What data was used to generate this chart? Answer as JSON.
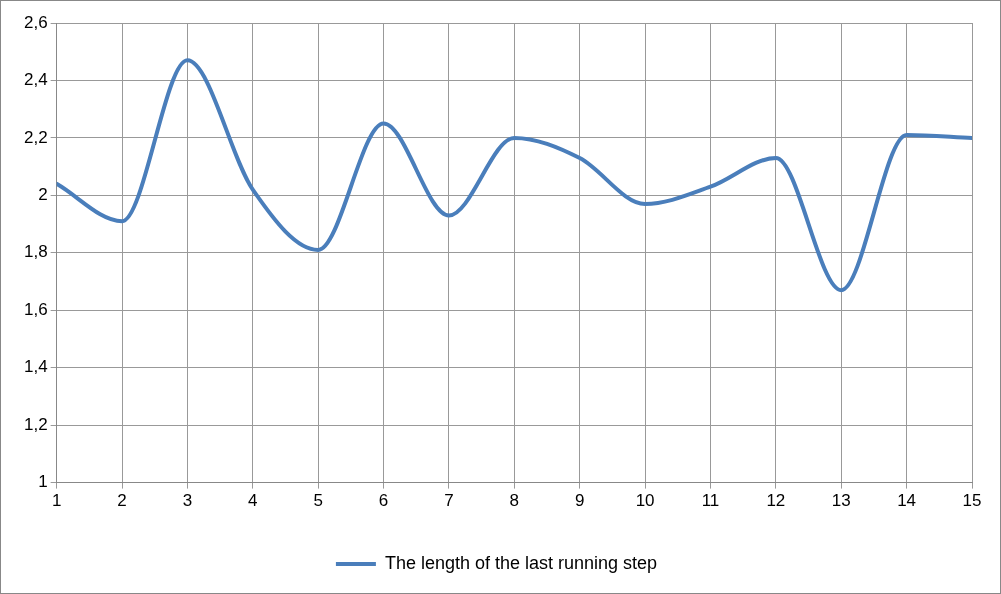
{
  "chart_data": {
    "type": "line",
    "x": [
      1,
      2,
      3,
      4,
      5,
      6,
      7,
      8,
      9,
      10,
      11,
      12,
      13,
      14,
      15
    ],
    "series": [
      {
        "name": "The length of the last running step",
        "color": "#4a7ebb",
        "values": [
          2.04,
          1.91,
          2.47,
          2.02,
          1.81,
          2.25,
          1.93,
          2.2,
          2.13,
          1.97,
          2.03,
          2.13,
          1.67,
          2.21,
          2.2
        ]
      }
    ],
    "xlim": [
      1,
      15
    ],
    "xticks": [
      1,
      2,
      3,
      4,
      5,
      6,
      7,
      8,
      9,
      10,
      11,
      12,
      13,
      14,
      15
    ],
    "ylim": [
      1,
      2.6
    ],
    "yticks": [
      1,
      {
        "value": 1.2,
        "label": "1,2"
      },
      {
        "value": 1.4,
        "label": "1,4"
      },
      {
        "value": 1.6,
        "label": "1,6"
      },
      {
        "value": 1.8,
        "label": "1,8"
      },
      2,
      {
        "value": 2.2,
        "label": "2,2"
      },
      {
        "value": 2.4,
        "label": "2,4"
      },
      {
        "value": 2.6,
        "label": "2,6"
      }
    ],
    "grid": true,
    "legend": "bottom",
    "marker": "none",
    "line_style": "solid"
  }
}
